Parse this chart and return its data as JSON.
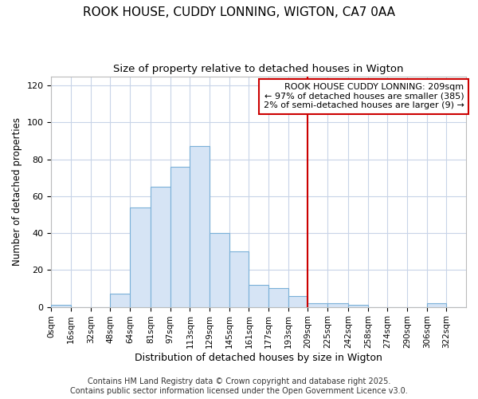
{
  "title": "ROOK HOUSE, CUDDY LONNING, WIGTON, CA7 0AA",
  "subtitle": "Size of property relative to detached houses in Wigton",
  "xlabel": "Distribution of detached houses by size in Wigton",
  "ylabel": "Number of detached properties",
  "bin_edges": [
    0,
    16,
    32,
    48,
    64,
    81,
    97,
    113,
    129,
    145,
    161,
    177,
    193,
    209,
    225,
    242,
    258,
    274,
    290,
    306,
    322,
    338
  ],
  "bin_labels": [
    "0sqm",
    "16sqm",
    "32sqm",
    "48sqm",
    "64sqm",
    "81sqm",
    "97sqm",
    "113sqm",
    "129sqm",
    "145sqm",
    "161sqm",
    "177sqm",
    "193sqm",
    "209sqm",
    "225sqm",
    "242sqm",
    "258sqm",
    "274sqm",
    "290sqm",
    "306sqm",
    "322sqm"
  ],
  "counts": [
    1,
    0,
    0,
    7,
    54,
    65,
    76,
    87,
    40,
    30,
    12,
    10,
    6,
    2,
    2,
    1,
    0,
    0,
    0,
    2,
    0
  ],
  "bar_color": "#d6e4f5",
  "bar_edge_color": "#7ab0d8",
  "vline_x": 209,
  "vline_color": "#cc0000",
  "annotation_title": "ROOK HOUSE CUDDY LONNING: 209sqm",
  "annotation_line2": "← 97% of detached houses are smaller (385)",
  "annotation_line3": "2% of semi-detached houses are larger (9) →",
  "annotation_box_color": "#ffffff",
  "annotation_box_edge": "#cc0000",
  "ylim": [
    0,
    125
  ],
  "yticks": [
    0,
    20,
    40,
    60,
    80,
    100,
    120
  ],
  "background_color": "#ffffff",
  "plot_bg_color": "#ffffff",
  "grid_color": "#c8d4e8",
  "footer_line1": "Contains HM Land Registry data © Crown copyright and database right 2025.",
  "footer_line2": "Contains public sector information licensed under the Open Government Licence v3.0.",
  "title_fontsize": 11,
  "subtitle_fontsize": 9.5,
  "annotation_fontsize": 8,
  "footer_fontsize": 7,
  "xlabel_fontsize": 9,
  "ylabel_fontsize": 8.5
}
